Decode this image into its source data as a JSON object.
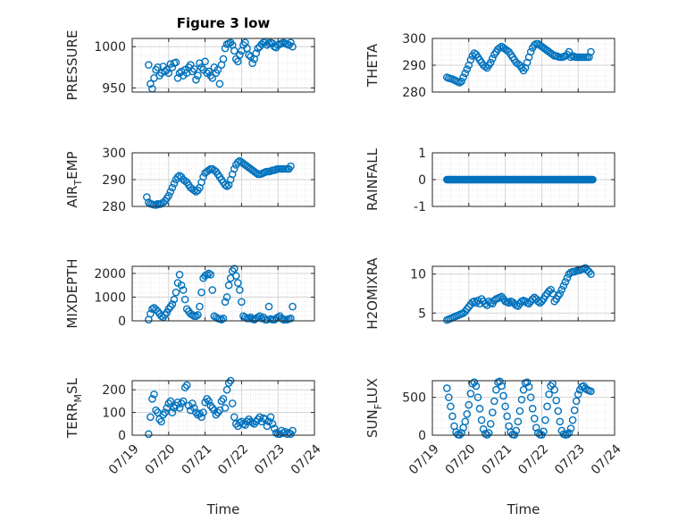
{
  "figure_title": "Figure 3 low",
  "colors": {
    "marker": "#0072BD",
    "axis": "#262626",
    "grid": "#dcdcdc",
    "background": "#ffffff"
  },
  "chart_data": [
    {
      "type": "scatter",
      "title": "Figure 3 low",
      "ylabel": "PRESSURE",
      "ylabel_sub": null,
      "xlim": [
        "07/19",
        "07/24"
      ],
      "ylim": [
        945,
        1010
      ],
      "yticks": [
        950,
        1000
      ],
      "xticks": [
        "07/19",
        "07/20",
        "07/21",
        "07/22",
        "07/23",
        "07/24"
      ],
      "show_xticks": false,
      "xlabel": "",
      "grid": true,
      "x": [
        19.45,
        19.5,
        19.55,
        19.6,
        19.65,
        19.7,
        19.75,
        19.8,
        19.85,
        19.9,
        19.95,
        20.0,
        20.05,
        20.1,
        20.15,
        20.2,
        20.25,
        20.3,
        20.35,
        20.4,
        20.45,
        20.5,
        20.55,
        20.6,
        20.65,
        20.7,
        20.75,
        20.8,
        20.85,
        20.9,
        20.95,
        21.0,
        21.05,
        21.1,
        21.15,
        21.2,
        21.25,
        21.3,
        21.35,
        21.4,
        21.45,
        21.5,
        21.55,
        21.6,
        21.65,
        21.7,
        21.75,
        21.8,
        21.85,
        21.9,
        21.95,
        22.0,
        22.05,
        22.1,
        22.15,
        22.2,
        22.25,
        22.3,
        22.35,
        22.4,
        22.45,
        22.5,
        22.55,
        22.6,
        22.65,
        22.7,
        22.75,
        22.8,
        22.85,
        22.9,
        22.95,
        23.0,
        23.05,
        23.1,
        23.15,
        23.2,
        23.25,
        23.3,
        23.35,
        23.4
      ],
      "y": [
        978,
        955,
        949,
        962,
        972,
        975,
        965,
        968,
        976,
        970,
        972,
        968,
        979,
        975,
        980,
        981,
        962,
        968,
        970,
        965,
        972,
        968,
        975,
        978,
        970,
        973,
        960,
        965,
        980,
        975,
        972,
        982,
        968,
        970,
        965,
        962,
        975,
        968,
        972,
        955,
        978,
        985,
        998,
        1003,
        1004,
        1005,
        1002,
        995,
        985,
        982,
        990,
        995,
        1002,
        1005,
        998,
        990,
        988,
        980,
        985,
        992,
        998,
        1000,
        1003,
        1005,
        1006,
        1002,
        1004,
        1005,
        1004,
        1000,
        999,
        1002,
        1003,
        1004,
        1005,
        1004,
        1003,
        1002,
        1005,
        1000
      ]
    },
    {
      "type": "scatter",
      "title": "",
      "ylabel": "THETA",
      "ylabel_sub": null,
      "xlim": [
        "07/19",
        "07/24"
      ],
      "ylim": [
        280,
        300
      ],
      "yticks": [
        280,
        290,
        300
      ],
      "xticks": [
        "07/19",
        "07/20",
        "07/21",
        "07/22",
        "07/23",
        "07/24"
      ],
      "show_xticks": false,
      "xlabel": "",
      "grid": true,
      "x": [
        19.4,
        19.45,
        19.5,
        19.55,
        19.6,
        19.65,
        19.7,
        19.75,
        19.8,
        19.85,
        19.9,
        19.95,
        20.0,
        20.05,
        20.1,
        20.15,
        20.2,
        20.25,
        20.3,
        20.35,
        20.4,
        20.45,
        20.5,
        20.55,
        20.6,
        20.65,
        20.7,
        20.75,
        20.8,
        20.85,
        20.9,
        20.95,
        21.0,
        21.05,
        21.1,
        21.15,
        21.2,
        21.25,
        21.3,
        21.35,
        21.4,
        21.45,
        21.5,
        21.55,
        21.6,
        21.65,
        21.7,
        21.75,
        21.8,
        21.85,
        21.9,
        21.95,
        22.0,
        22.05,
        22.1,
        22.15,
        22.2,
        22.25,
        22.3,
        22.35,
        22.4,
        22.45,
        22.5,
        22.55,
        22.6,
        22.65,
        22.7,
        22.75,
        22.8,
        22.85,
        22.9,
        22.95,
        23.0,
        23.05,
        23.1,
        23.15,
        23.2,
        23.25,
        23.3,
        23.35
      ],
      "y": [
        285.5,
        285.2,
        285,
        284.8,
        284.5,
        284.2,
        283.8,
        283.5,
        284,
        285.5,
        287,
        288.5,
        290,
        292,
        293.5,
        294.5,
        294,
        293,
        292,
        291,
        290,
        289.5,
        289,
        290,
        291,
        292.5,
        294,
        295,
        296,
        296.5,
        297,
        296.5,
        296,
        295.5,
        295,
        294,
        293,
        292,
        291,
        290.5,
        290,
        289,
        288,
        289,
        291,
        293,
        295,
        296.5,
        297.5,
        298,
        298,
        297.5,
        297,
        296.5,
        296,
        295.5,
        295,
        294.5,
        294,
        293.5,
        293.5,
        293.2,
        293,
        293,
        293.2,
        293.5,
        294,
        295,
        293,
        293.5,
        293.2,
        293,
        293,
        293,
        293,
        293,
        293,
        293,
        293,
        295
      ]
    },
    {
      "type": "scatter",
      "title": "",
      "ylabel": "AIR",
      "ylabel_sub": "T",
      "ylabel_suffix": "EMP",
      "xlim": [
        "07/19",
        "07/24"
      ],
      "ylim": [
        280,
        300
      ],
      "yticks": [
        280,
        290,
        300
      ],
      "xticks": [
        "07/19",
        "07/20",
        "07/21",
        "07/22",
        "07/23",
        "07/24"
      ],
      "show_xticks": false,
      "xlabel": "",
      "grid": true,
      "x": [
        19.4,
        19.45,
        19.5,
        19.55,
        19.6,
        19.65,
        19.7,
        19.75,
        19.8,
        19.85,
        19.9,
        19.95,
        20.0,
        20.05,
        20.1,
        20.15,
        20.2,
        20.25,
        20.3,
        20.35,
        20.4,
        20.45,
        20.5,
        20.55,
        20.6,
        20.65,
        20.7,
        20.75,
        20.8,
        20.85,
        20.9,
        20.95,
        21.0,
        21.05,
        21.1,
        21.15,
        21.2,
        21.25,
        21.3,
        21.35,
        21.4,
        21.45,
        21.5,
        21.55,
        21.6,
        21.65,
        21.7,
        21.75,
        21.8,
        21.85,
        21.9,
        21.95,
        22.0,
        22.05,
        22.1,
        22.15,
        22.2,
        22.25,
        22.3,
        22.35,
        22.4,
        22.45,
        22.5,
        22.55,
        22.6,
        22.65,
        22.7,
        22.75,
        22.8,
        22.85,
        22.9,
        22.95,
        23.0,
        23.05,
        23.1,
        23.15,
        23.2,
        23.25,
        23.3,
        23.35
      ],
      "y": [
        283.5,
        281.5,
        281,
        280.8,
        280.6,
        280.5,
        281,
        280.8,
        281,
        281.5,
        282,
        283,
        284,
        285.5,
        287,
        288.5,
        290,
        291,
        291.5,
        291,
        290,
        289.5,
        289,
        288,
        287,
        286.5,
        286,
        285.5,
        286,
        287,
        289,
        291,
        292.5,
        293,
        293.5,
        294,
        294,
        293.5,
        293,
        292,
        291,
        290,
        289,
        288,
        287.5,
        288,
        290,
        292,
        294,
        295.5,
        296.5,
        297,
        296.5,
        296,
        295.5,
        295,
        294.5,
        294,
        293.5,
        293,
        292.5,
        292,
        292,
        292.2,
        292.5,
        292.8,
        293,
        293,
        293.2,
        293.5,
        293.5,
        293.8,
        294,
        294,
        294,
        294,
        294,
        294,
        294,
        295
      ]
    },
    {
      "type": "scatter",
      "title": "",
      "ylabel": "RAINFALL",
      "ylabel_sub": null,
      "xlim": [
        "07/19",
        "07/24"
      ],
      "ylim": [
        -1,
        1
      ],
      "yticks": [
        -1,
        0,
        1
      ],
      "xticks": [
        "07/19",
        "07/20",
        "07/21",
        "07/22",
        "07/23",
        "07/24"
      ],
      "show_xticks": false,
      "xlabel": "",
      "grid": true,
      "x_range": [
        19.4,
        23.4
      ],
      "constant_y": 0,
      "n_points": 160
    },
    {
      "type": "scatter",
      "title": "",
      "ylabel": "MIXDEPTH",
      "ylabel_sub": null,
      "xlim": [
        "07/19",
        "07/24"
      ],
      "ylim": [
        0,
        2300
      ],
      "yticks": [
        0,
        1000,
        2000
      ],
      "xticks": [
        "07/19",
        "07/20",
        "07/21",
        "07/22",
        "07/23",
        "07/24"
      ],
      "show_xticks": false,
      "xlabel": "",
      "grid": true,
      "x": [
        19.45,
        19.5,
        19.55,
        19.6,
        19.65,
        19.7,
        19.75,
        19.8,
        19.85,
        19.9,
        19.95,
        20.0,
        20.05,
        20.1,
        20.15,
        20.2,
        20.25,
        20.3,
        20.35,
        20.4,
        20.45,
        20.5,
        20.55,
        20.6,
        20.65,
        20.7,
        20.75,
        20.8,
        20.85,
        20.9,
        20.95,
        21.0,
        21.05,
        21.1,
        21.15,
        21.2,
        21.25,
        21.3,
        21.35,
        21.4,
        21.45,
        21.5,
        21.55,
        21.6,
        21.65,
        21.7,
        21.75,
        21.8,
        21.85,
        21.9,
        21.95,
        22.0,
        22.05,
        22.1,
        22.15,
        22.2,
        22.25,
        22.3,
        22.35,
        22.4,
        22.45,
        22.5,
        22.55,
        22.6,
        22.65,
        22.7,
        22.75,
        22.8,
        22.85,
        22.9,
        22.95,
        23.0,
        23.05,
        23.1,
        23.15,
        23.2,
        23.25,
        23.3,
        23.35,
        23.4
      ],
      "y": [
        50,
        300,
        500,
        550,
        480,
        400,
        300,
        200,
        150,
        250,
        350,
        500,
        600,
        700,
        900,
        1200,
        1600,
        1950,
        1500,
        1300,
        900,
        500,
        400,
        300,
        250,
        200,
        200,
        250,
        600,
        1200,
        1800,
        1900,
        1950,
        2000,
        1950,
        1300,
        200,
        150,
        100,
        80,
        50,
        100,
        800,
        1000,
        1500,
        1800,
        2100,
        2200,
        1900,
        1600,
        1300,
        800,
        200,
        150,
        100,
        100,
        150,
        80,
        50,
        100,
        150,
        200,
        100,
        150,
        50,
        50,
        600,
        80,
        50,
        50,
        100,
        150,
        200,
        100,
        50,
        50,
        50,
        80,
        100,
        600
      ]
    },
    {
      "type": "scatter",
      "title": "",
      "ylabel": "H2OMIXRA",
      "ylabel_sub": null,
      "xlim": [
        "07/19",
        "07/24"
      ],
      "ylim": [
        4,
        11
      ],
      "yticks": [
        5,
        10
      ],
      "xticks": [
        "07/19",
        "07/20",
        "07/21",
        "07/22",
        "07/23",
        "07/24"
      ],
      "show_xticks": false,
      "xlabel": "",
      "grid": true,
      "x": [
        19.4,
        19.45,
        19.5,
        19.55,
        19.6,
        19.65,
        19.7,
        19.75,
        19.8,
        19.85,
        19.9,
        19.95,
        20.0,
        20.05,
        20.1,
        20.15,
        20.2,
        20.25,
        20.3,
        20.35,
        20.4,
        20.45,
        20.5,
        20.55,
        20.6,
        20.65,
        20.7,
        20.75,
        20.8,
        20.85,
        20.9,
        20.95,
        21.0,
        21.05,
        21.1,
        21.15,
        21.2,
        21.25,
        21.3,
        21.35,
        21.4,
        21.45,
        21.5,
        21.55,
        21.6,
        21.65,
        21.7,
        21.75,
        21.8,
        21.85,
        21.9,
        21.95,
        22.0,
        22.05,
        22.1,
        22.15,
        22.2,
        22.25,
        22.3,
        22.35,
        22.4,
        22.45,
        22.5,
        22.55,
        22.6,
        22.65,
        22.7,
        22.75,
        22.8,
        22.85,
        22.9,
        22.95,
        23.0,
        23.05,
        23.1,
        23.15,
        23.2,
        23.25,
        23.3,
        23.35
      ],
      "y": [
        4.1,
        4.2,
        4.3,
        4.4,
        4.5,
        4.6,
        4.7,
        4.8,
        4.9,
        5.0,
        5.2,
        5.5,
        5.8,
        6.1,
        6.4,
        6.5,
        6.3,
        6.6,
        6.2,
        6.8,
        6.5,
        6.2,
        6.0,
        6.5,
        6.3,
        6.2,
        6.6,
        6.8,
        6.9,
        7.0,
        7.1,
        6.8,
        6.5,
        6.4,
        6.3,
        6.5,
        6.4,
        6.2,
        6.0,
        5.9,
        6.2,
        6.5,
        6.6,
        6.5,
        6.3,
        6.2,
        6.5,
        6.8,
        7.0,
        6.8,
        6.5,
        6.3,
        6.5,
        6.8,
        7.2,
        7.5,
        7.8,
        8.0,
        7.5,
        6.5,
        6.8,
        7.2,
        7.5,
        8.0,
        8.5,
        9.0,
        9.5,
        10.0,
        10.2,
        10.3,
        10.3,
        10.4,
        10.5,
        10.5,
        10.6,
        10.7,
        10.8,
        10.5,
        10.3,
        10.0
      ]
    },
    {
      "type": "scatter",
      "title": "",
      "ylabel": "TERR",
      "ylabel_sub": "M",
      "ylabel_suffix": "SL",
      "xlim": [
        "07/19",
        "07/24"
      ],
      "ylim": [
        0,
        240
      ],
      "yticks": [
        0,
        100,
        200
      ],
      "xticks": [
        "07/19",
        "07/20",
        "07/21",
        "07/22",
        "07/23",
        "07/24"
      ],
      "show_xticks": true,
      "xlabel": "Time",
      "grid": true,
      "x": [
        19.45,
        19.5,
        19.55,
        19.6,
        19.65,
        19.7,
        19.75,
        19.8,
        19.85,
        19.9,
        19.95,
        20.0,
        20.05,
        20.1,
        20.15,
        20.2,
        20.25,
        20.3,
        20.35,
        20.4,
        20.45,
        20.5,
        20.55,
        20.6,
        20.65,
        20.7,
        20.75,
        20.8,
        20.85,
        20.9,
        20.95,
        21.0,
        21.05,
        21.1,
        21.15,
        21.2,
        21.25,
        21.3,
        21.35,
        21.4,
        21.45,
        21.5,
        21.55,
        21.6,
        21.65,
        21.7,
        21.75,
        21.8,
        21.85,
        21.9,
        21.95,
        22.0,
        22.05,
        22.1,
        22.15,
        22.2,
        22.25,
        22.3,
        22.35,
        22.4,
        22.45,
        22.5,
        22.55,
        22.6,
        22.65,
        22.7,
        22.75,
        22.8,
        22.85,
        22.9,
        22.95,
        23.0,
        23.05,
        23.1,
        23.15,
        23.2,
        23.25,
        23.3,
        23.35,
        23.4
      ],
      "y": [
        5,
        80,
        160,
        180,
        110,
        100,
        70,
        60,
        90,
        100,
        120,
        140,
        150,
        100,
        120,
        130,
        145,
        120,
        140,
        150,
        210,
        220,
        130,
        110,
        140,
        120,
        100,
        90,
        95,
        80,
        100,
        145,
        160,
        150,
        130,
        120,
        110,
        90,
        100,
        110,
        150,
        160,
        120,
        200,
        230,
        240,
        140,
        80,
        50,
        40,
        55,
        60,
        50,
        45,
        60,
        70,
        60,
        55,
        50,
        60,
        70,
        80,
        60,
        75,
        70,
        40,
        60,
        80,
        50,
        30,
        10,
        5,
        5,
        20,
        10,
        15,
        5,
        10,
        5,
        20
      ]
    },
    {
      "type": "scatter",
      "title": "",
      "ylabel": "SUN",
      "ylabel_sub": "F",
      "ylabel_suffix": "LUX",
      "xlim": [
        "07/19",
        "07/24"
      ],
      "ylim": [
        0,
        720
      ],
      "yticks": [
        0,
        500
      ],
      "xticks": [
        "07/19",
        "07/20",
        "07/21",
        "07/22",
        "07/23",
        "07/24"
      ],
      "show_xticks": true,
      "xlabel": "Time",
      "grid": true,
      "x": [
        19.4,
        19.45,
        19.5,
        19.55,
        19.6,
        19.65,
        19.7,
        19.75,
        19.8,
        19.85,
        19.9,
        19.95,
        20.0,
        20.05,
        20.1,
        20.15,
        20.2,
        20.25,
        20.3,
        20.35,
        20.4,
        20.45,
        20.5,
        20.55,
        20.6,
        20.65,
        20.7,
        20.75,
        20.8,
        20.85,
        20.9,
        20.95,
        21.0,
        21.05,
        21.1,
        21.15,
        21.2,
        21.25,
        21.3,
        21.35,
        21.4,
        21.45,
        21.5,
        21.55,
        21.6,
        21.65,
        21.7,
        21.75,
        21.8,
        21.85,
        21.9,
        21.95,
        22.0,
        22.05,
        22.1,
        22.15,
        22.2,
        22.25,
        22.3,
        22.35,
        22.4,
        22.45,
        22.5,
        22.55,
        22.6,
        22.65,
        22.7,
        22.75,
        22.8,
        22.85,
        22.9,
        22.95,
        23.0,
        23.05,
        23.1,
        23.15,
        23.2,
        23.25,
        23.3,
        23.35
      ],
      "y": [
        620,
        500,
        380,
        250,
        120,
        40,
        10,
        5,
        30,
        100,
        180,
        280,
        400,
        550,
        680,
        700,
        650,
        500,
        350,
        200,
        80,
        20,
        5,
        30,
        150,
        300,
        450,
        600,
        700,
        710,
        650,
        520,
        380,
        250,
        120,
        40,
        10,
        5,
        60,
        180,
        320,
        470,
        600,
        690,
        700,
        640,
        500,
        350,
        220,
        100,
        30,
        10,
        5,
        50,
        200,
        380,
        540,
        650,
        680,
        600,
        460,
        320,
        180,
        60,
        15,
        5,
        10,
        30,
        90,
        200,
        330,
        450,
        540,
        600,
        640,
        650,
        620,
        600,
        590,
        580
      ]
    }
  ]
}
